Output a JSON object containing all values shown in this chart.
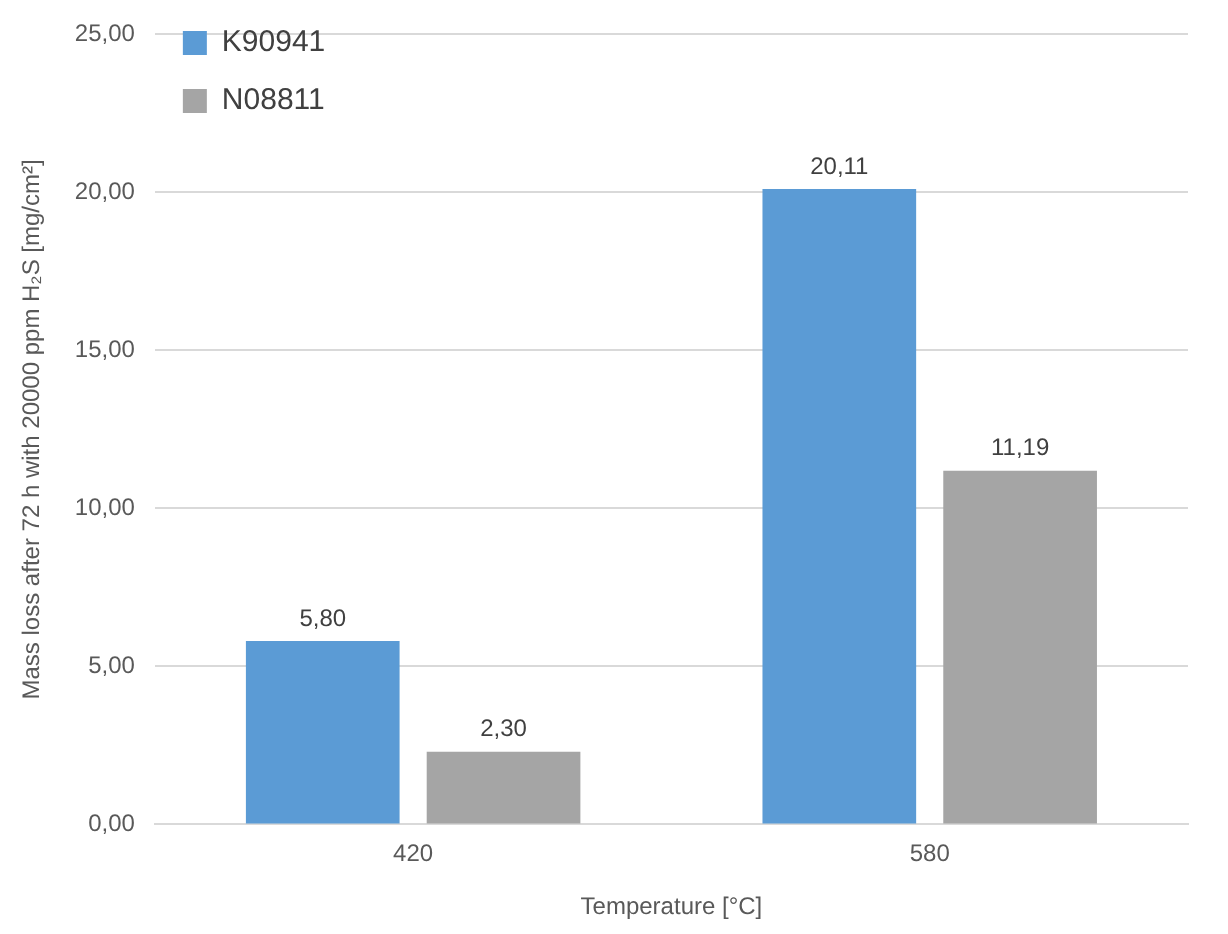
{
  "chart_data": {
    "type": "bar",
    "xlabel": "Temperature [°C]",
    "ylabel": "Mass loss after 72 h with 20000 ppm H₂S [mg/cm²]",
    "categories": [
      "420",
      "580"
    ],
    "series": [
      {
        "name": "K90941",
        "color": "#5b9bd5",
        "values": [
          5.8,
          20.11
        ],
        "value_labels": [
          "5,80",
          "20,11"
        ]
      },
      {
        "name": "N08811",
        "color": "#a5a5a5",
        "values": [
          2.3,
          11.19
        ],
        "value_labels": [
          "2,30",
          "11,19"
        ]
      }
    ],
    "ylim": [
      0,
      25
    ],
    "yticks": [
      {
        "value": 0,
        "label": "0,00"
      },
      {
        "value": 5,
        "label": "5,00"
      },
      {
        "value": 10,
        "label": "10,00"
      },
      {
        "value": 15,
        "label": "15,00"
      },
      {
        "value": 20,
        "label": "20,00"
      },
      {
        "value": 25,
        "label": "25,00"
      }
    ],
    "grid": "y",
    "legend": "top left"
  }
}
